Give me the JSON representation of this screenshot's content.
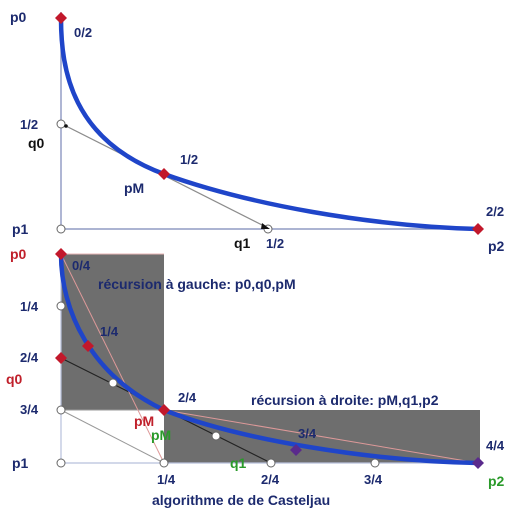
{
  "colors": {
    "curve": "#1f45c9",
    "control_polygon": "#8c8c8c",
    "point_red": "#c2182b",
    "point_purple": "#5a2a8c",
    "label_navy": "#1c2a6e",
    "label_red": "#c0202b",
    "label_green": "#2a9a2a",
    "label_dark": "#111111",
    "shade": "#6e6e6e",
    "axis": "#7a86b8"
  },
  "top_panel": {
    "labels": {
      "p0": "p0",
      "p1": "p1",
      "p2": "p2",
      "q0": "q0",
      "q1": "q1",
      "pM": "pM",
      "t_0_2": "0/2",
      "t_1_2_left": "1/2",
      "t_1_2_mid": "1/2",
      "t_1_2_bottom": "1/2",
      "t_2_2": "2/2"
    }
  },
  "bottom_panel": {
    "labels": {
      "p0": "p0",
      "p1": "p1",
      "p2": "p2",
      "q0": "q0",
      "q1": "q1",
      "pM_red": "pM",
      "pM_green": "pM",
      "t_0_4": "0/4",
      "t_1_4_curve": "1/4",
      "t_2_4_curve": "2/4",
      "t_3_4_curve": "3/4",
      "t_4_4": "4/4",
      "y_1_4": "1/4",
      "y_2_4": "2/4",
      "y_3_4": "3/4",
      "x_1_4": "1/4",
      "x_2_4": "2/4",
      "x_3_4": "3/4",
      "recursion_left": "récursion à gauche: p0,q0,pM",
      "recursion_right": "récursion à droite: pM,q1,p2",
      "caption": "algorithme de de Casteljau"
    }
  }
}
